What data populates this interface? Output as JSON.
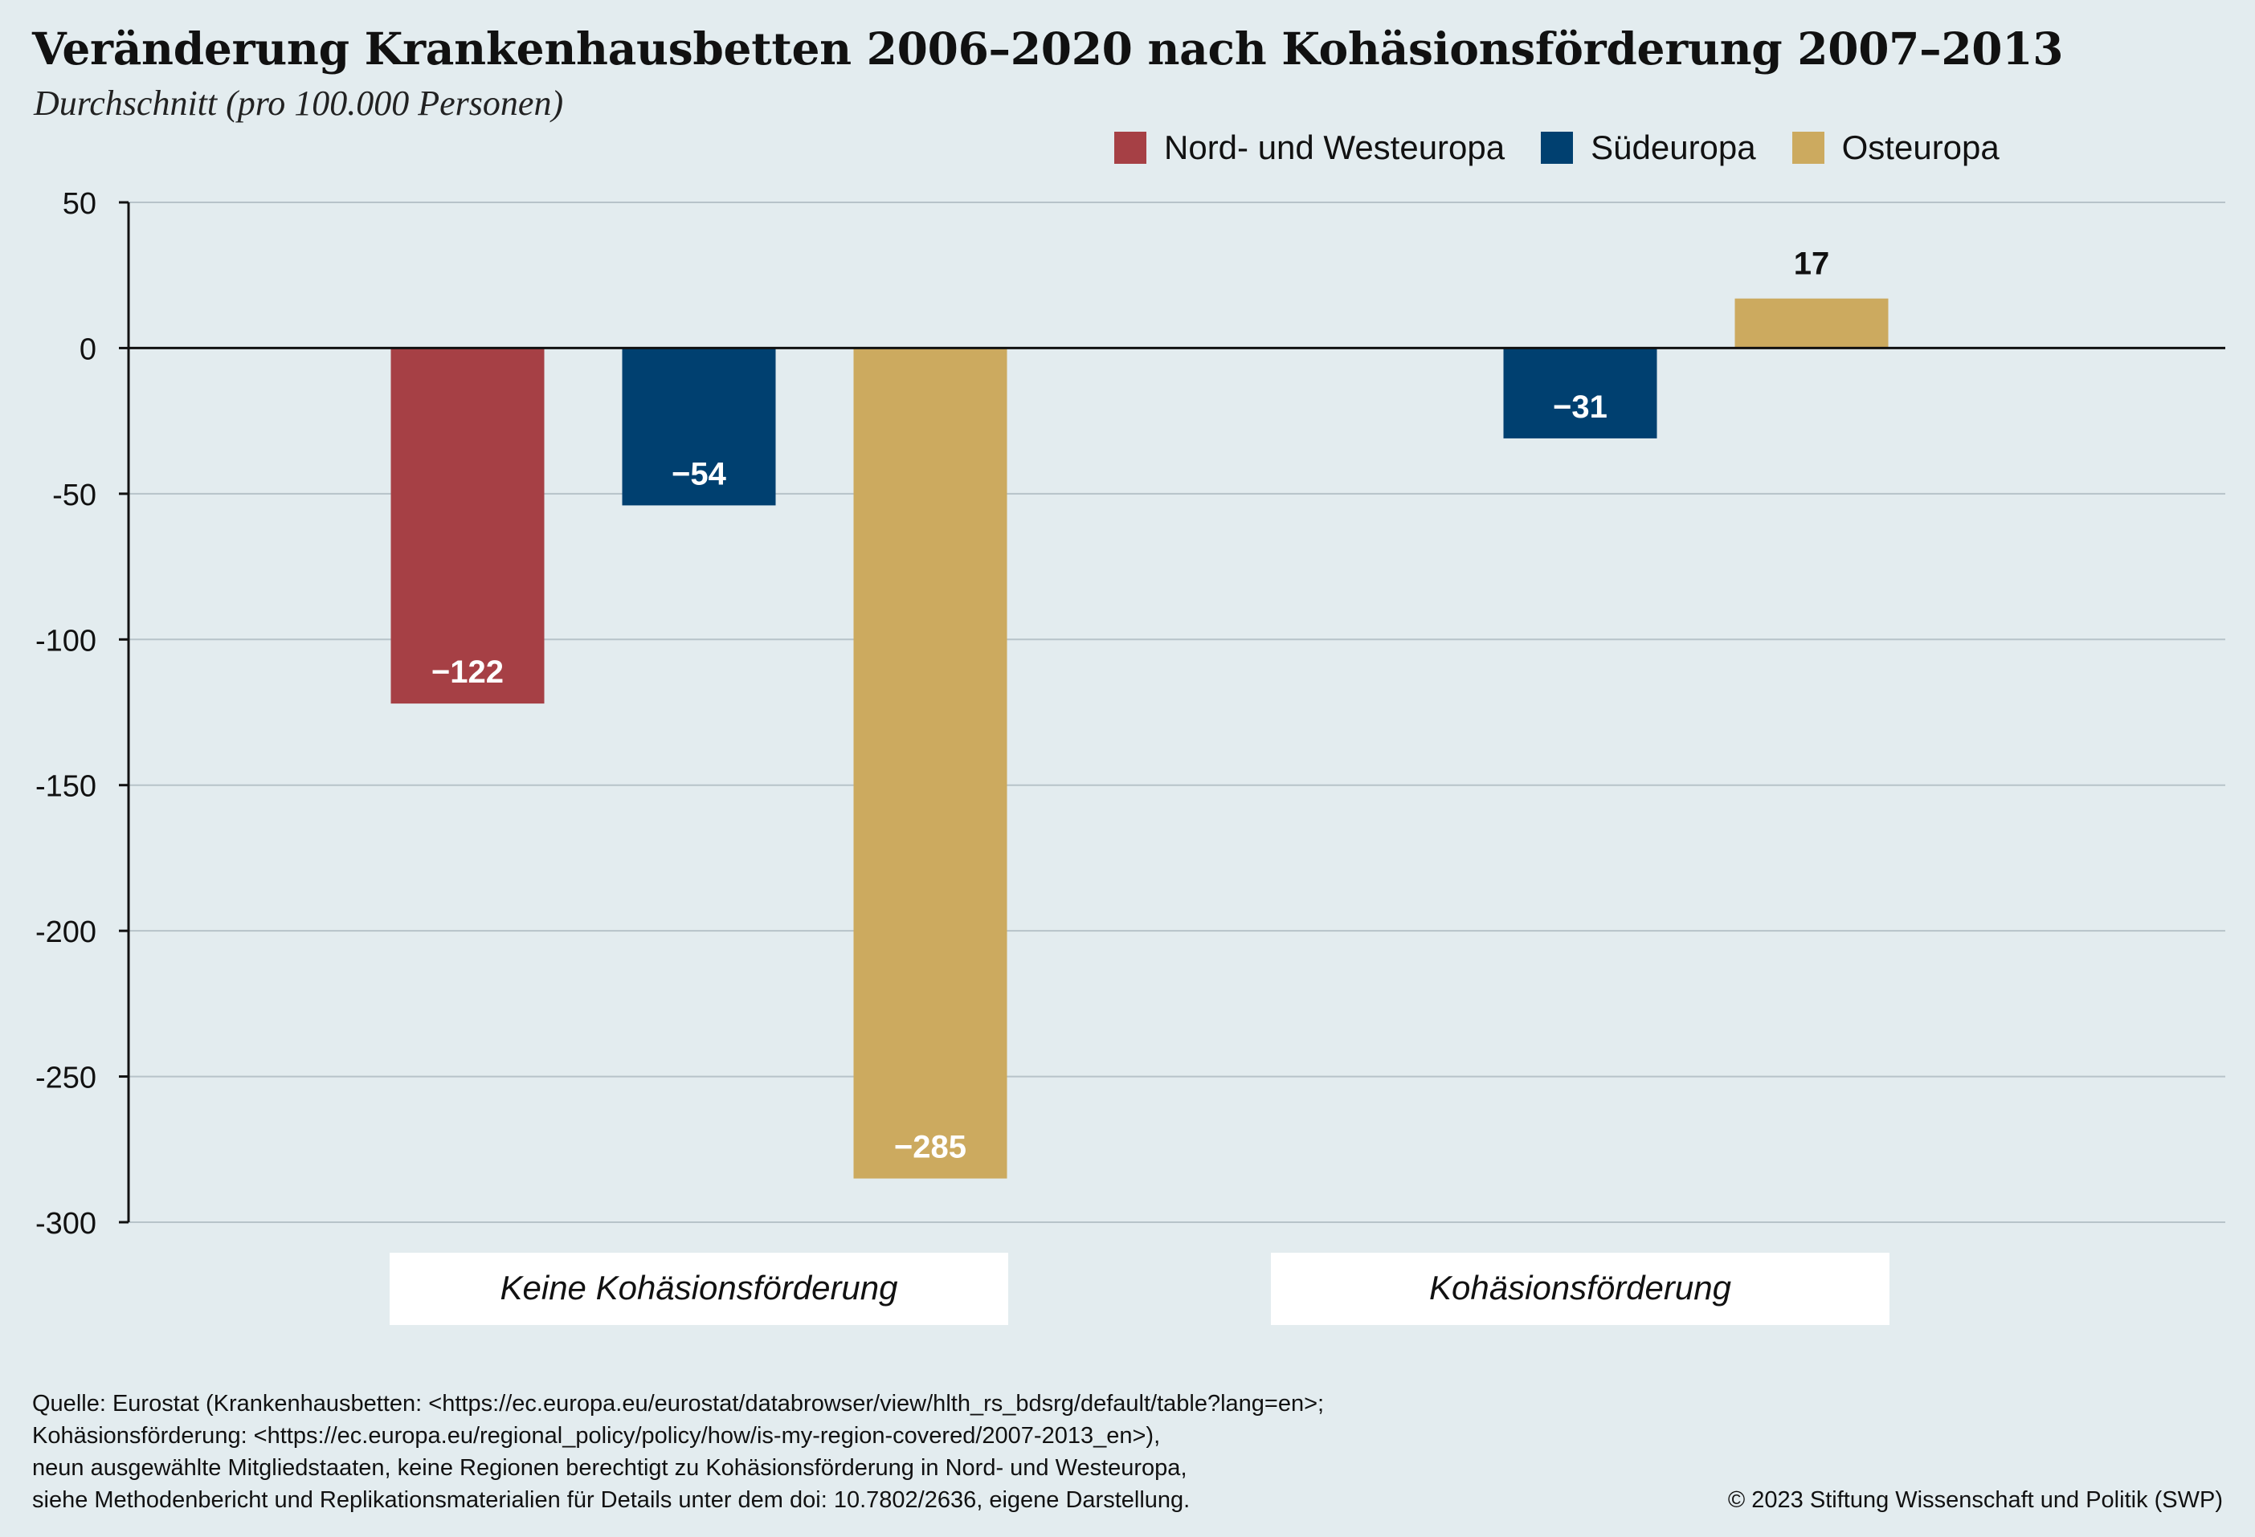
{
  "title": "Veränderung Krankenhausbetten 2006–2020 nach Kohäsionsförderung 2007–2013",
  "subtitle": "Durchschnitt (pro 100.000 Personen)",
  "legend": [
    {
      "label": "Nord- und Westeuropa",
      "color": "#a64045"
    },
    {
      "label": "Südeuropa",
      "color": "#004070"
    },
    {
      "label": "Osteuropa",
      "color": "#ccaa5f"
    }
  ],
  "chart_data": {
    "type": "bar",
    "categories": [
      "Keine Kohäsionsförderung",
      "Kohäsionsförderung"
    ],
    "series": [
      {
        "name": "Nord- und Westeuropa",
        "color": "#a64045",
        "values": [
          -122,
          null
        ],
        "labels": [
          "−122",
          null
        ]
      },
      {
        "name": "Südeuropa",
        "color": "#004070",
        "values": [
          -54,
          -31
        ],
        "labels": [
          "−54",
          "−31"
        ]
      },
      {
        "name": "Osteuropa",
        "color": "#ccaa5f",
        "values": [
          -285,
          17
        ],
        "labels": [
          "−285",
          "17"
        ]
      }
    ],
    "ylim": [
      -300,
      50
    ],
    "yticks": [
      50,
      0,
      -50,
      -100,
      -150,
      -200,
      -250,
      -300
    ],
    "ytick_labels": [
      "50",
      "0",
      "-50",
      "-100",
      "-150",
      "-200",
      "-250",
      "-300"
    ],
    "grid": true,
    "legend_position": "top-right",
    "xlabel": "",
    "ylabel": ""
  },
  "source_lines": [
    "Quelle: Eurostat (Krankenhausbetten: <https://ec.europa.eu/eurostat/databrowser/view/hlth_rs_bdsrg/default/table?lang=en>;",
    "Kohäsionsförderung: <https://ec.europa.eu/regional_policy/policy/how/is-my-region-covered/2007-2013_en>),",
    "neun ausgewählte Mitgliedstaaten, keine Regionen berechtigt zu Kohäsionsförderung in Nord- und Westeuropa,",
    "siehe Methodenbericht und Replikationsmaterialien für Details unter dem doi: 10.7802/2636, eigene Darstellung."
  ],
  "copyright": "© 2023 Stiftung Wissenschaft und Politik (SWP)"
}
